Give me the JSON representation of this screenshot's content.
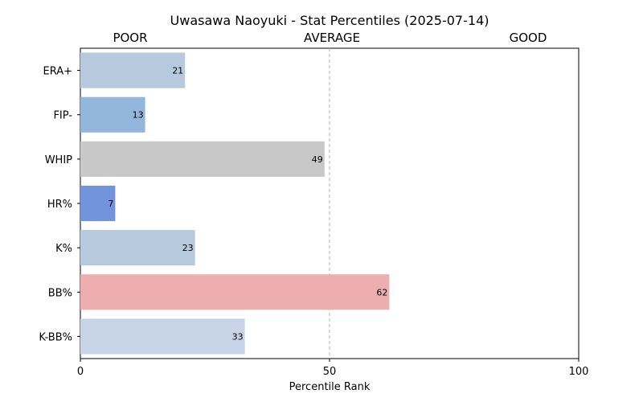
{
  "chart_data": {
    "type": "bar",
    "orientation": "horizontal",
    "title": "Uwasawa Naoyuki - Stat Percentiles (2025-07-14)",
    "xlabel": "Percentile Rank",
    "ylabel": "",
    "xlim": [
      0,
      100
    ],
    "x_ticks": [
      0,
      50,
      100
    ],
    "zone_labels": [
      "POOR",
      "AVERAGE",
      "GOOD"
    ],
    "reference_line": 50,
    "categories": [
      "ERA+",
      "FIP-",
      "WHIP",
      "HR%",
      "K%",
      "BB%",
      "K-BB%"
    ],
    "values": [
      21,
      13,
      49,
      7,
      23,
      62,
      33
    ],
    "colors": [
      "#b7c9dd",
      "#92b6dc",
      "#c8c8c8",
      "#7194dc",
      "#b7c9dd",
      "#ecaeae",
      "#c7d4e7"
    ],
    "grid": false,
    "legend": "none"
  }
}
